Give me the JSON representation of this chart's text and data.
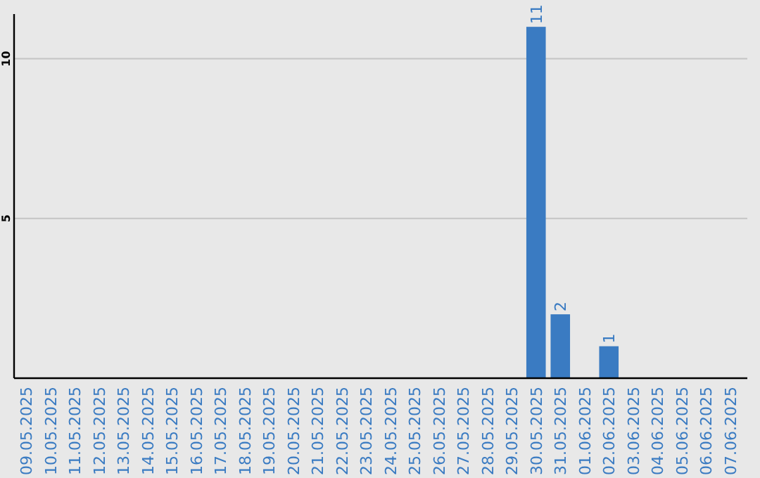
{
  "chart_data": {
    "type": "bar",
    "categories": [
      "09.05.2025",
      "10.05.2025",
      "11.05.2025",
      "12.05.2025",
      "13.05.2025",
      "14.05.2025",
      "15.05.2025",
      "16.05.2025",
      "17.05.2025",
      "18.05.2025",
      "19.05.2025",
      "20.05.2025",
      "21.05.2025",
      "22.05.2025",
      "23.05.2025",
      "24.05.2025",
      "25.05.2025",
      "26.05.2025",
      "27.05.2025",
      "28.05.2025",
      "29.05.2025",
      "30.05.2025",
      "31.05.2025",
      "01.06.2025",
      "02.06.2025",
      "03.06.2025",
      "04.06.2025",
      "05.06.2025",
      "06.06.2025",
      "07.06.2025"
    ],
    "values": [
      0,
      0,
      0,
      0,
      0,
      0,
      0,
      0,
      0,
      0,
      0,
      0,
      0,
      0,
      0,
      0,
      0,
      0,
      0,
      0,
      0,
      11,
      2,
      0,
      1,
      0,
      0,
      0,
      0,
      0
    ],
    "value_labels": [
      null,
      null,
      null,
      null,
      null,
      null,
      null,
      null,
      null,
      null,
      null,
      null,
      null,
      null,
      null,
      null,
      null,
      null,
      null,
      null,
      null,
      "11",
      "2",
      null,
      "1",
      null,
      null,
      null,
      null,
      null
    ],
    "color": "#3a7bc2",
    "ylim": [
      0,
      11.4
    ],
    "yticks": [
      5,
      10
    ],
    "grid": "y"
  }
}
